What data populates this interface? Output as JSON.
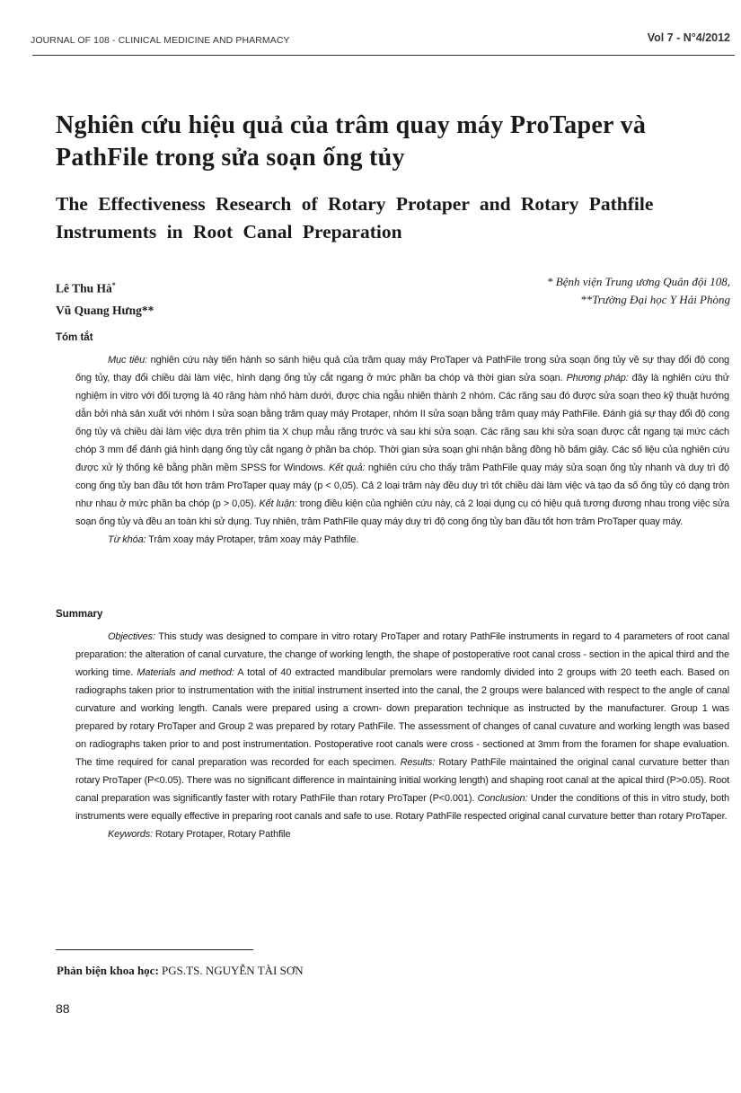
{
  "header": {
    "journal": "JOURNAL OF 108 - CLINICAL MEDICINE AND PHARMACY",
    "volume": "Vol 7 - N°4/2012"
  },
  "title_vi": "Nghiên cứu hiệu quả của trâm quay máy ProTaper và PathFile trong sửa soạn ống tủy",
  "title_en": "The Effectiveness Research of Rotary Protaper and Rotary Pathfile Instruments in Root Canal Preparation",
  "authors": [
    {
      "name": "Lê Thu Hà",
      "mark": "*"
    },
    {
      "name": "Vũ Quang Hưng",
      "mark": "**"
    }
  ],
  "affiliations": [
    "* Bệnh viện Trung ương Quân đội 108,",
    "**Trường Đại học Y Hải Phòng"
  ],
  "abstract_vi": {
    "heading": "Tóm tắt",
    "objective_label": "Mục tiêu:",
    "objective": " nghiên cứu này tiến hành so sánh hiệu quả của trâm quay máy ProTaper và PathFile trong sửa soạn ống tủy về sự thay đổi độ cong ống tủy, thay đổi chiều dài làm việc, hình dạng ống tủy cắt ngang ở mức phần ba chóp và thời gian sửa soạn. ",
    "method_label": "Phương pháp:",
    "method": " đây là nghiên cứu thử nghiệm in vitro với đối tượng là 40 răng hàm nhỏ hàm dưới, được chia ngẫu nhiên thành 2 nhóm. Các răng sau đó được sửa soạn theo kỹ thuật hướng dẫn bởi nhà sản xuất với nhóm I sửa soạn bằng trâm quay máy Protaper, nhóm II sửa soạn bằng trâm quay máy PathFile. Đánh giá sự thay đổi độ cong ống tủy và chiều dài làm việc dựa trên phim tia X chụp mẫu răng trước và sau khi sửa soạn. Các răng sau khi sửa soạn được cắt ngang tại mức cách chóp 3 mm để đánh giá hình dạng ống tủy cắt ngang ở phần ba chóp. Thời gian sửa soạn ghi nhận bằng đồng hồ bấm giây. Các số liệu của nghiên cứu được xử lý thống kê bằng phần mềm SPSS for Windows. ",
    "results_label": "Kết quả:",
    "results": " nghiên cứu cho thấy trâm PathFile quay máy sửa soạn ống tủy nhanh và duy trì độ cong ống tủy ban đầu tốt hơn trâm ProTaper quay máy (p < 0,05). Cả 2 loại trâm này đều duy trì tốt chiều dài làm việc và tạo đa số ống tủy có dạng tròn như nhau ở mức phần ba chóp (p > 0,05). ",
    "conclusion_label": "Kết luận:",
    "conclusion": " trong điều kiện của nghiên cứu này, cả 2 loại dụng cụ có hiệu quả tương đương nhau trong việc sửa soạn ống tủy và đều an toàn khi sử dụng. Tuy nhiên, trâm PathFile quay máy duy trì độ cong ống tủy ban đầu tốt hơn trâm ProTaper quay máy.",
    "keywords_label": "Từ khóa:",
    "keywords": " Trâm xoay máy Protaper, trâm xoay máy Pathfile."
  },
  "abstract_en": {
    "heading": "Summary",
    "objective_label": "Objectives:",
    "objective": " This study was designed to compare in vitro rotary ProTaper and rotary PathFile instruments in regard to 4 parameters of root canal preparation: the alteration of canal curvature, the change of working length, the shape of postoperative root canal cross - section in the apical third and the working time. ",
    "method_label": "Materials and method:",
    "method": " A total of 40 extracted mandibular premolars were randomly divided into 2 groups with 20 teeth each. Based on radiographs taken prior to instrumentation with the initial instrument inserted into the canal, the 2 groups were balanced with respect to the angle of canal curvature and working length. Canals were prepared using a crown- down preparation technique as instructed by the manufacturer. Group 1 was prepared by rotary ProTaper and Group 2 was prepared by rotary PathFile. The assessment of changes of canal cuvature and working length was based on radiographs taken prior to and post instrumentation. Postoperative root canals were cross - sectioned at 3mm from the foramen for shape evaluation. The time required for canal preparation was recorded for each specimen. ",
    "results_label": "Results:",
    "results": " Rotary PathFile  maintained the original canal curvature better than rotary ProTaper (P<0.05). There was no significant difference in maintaining initial working length) and shaping root canal at the apical third (P>0.05). Root canal preparation was significantly faster with rotary PathFile  than rotary  ProTaper (P<0.001). ",
    "conclusion_label": "Conclusion:",
    "conclusion": " Under the conditions of this in vitro study, both instruments were equally effective in preparing root canals and safe to use. Rotary PathFile respected original canal curvature better than rotary ProTaper.",
    "keywords_label": "Keywords:",
    "keywords": " Rotary Protaper, Rotary Pathfile"
  },
  "footnote": {
    "label": "Phản biện khoa học:",
    "value": " PGS.TS. NGUYỄN TÀI SƠN"
  },
  "page_number": "88"
}
